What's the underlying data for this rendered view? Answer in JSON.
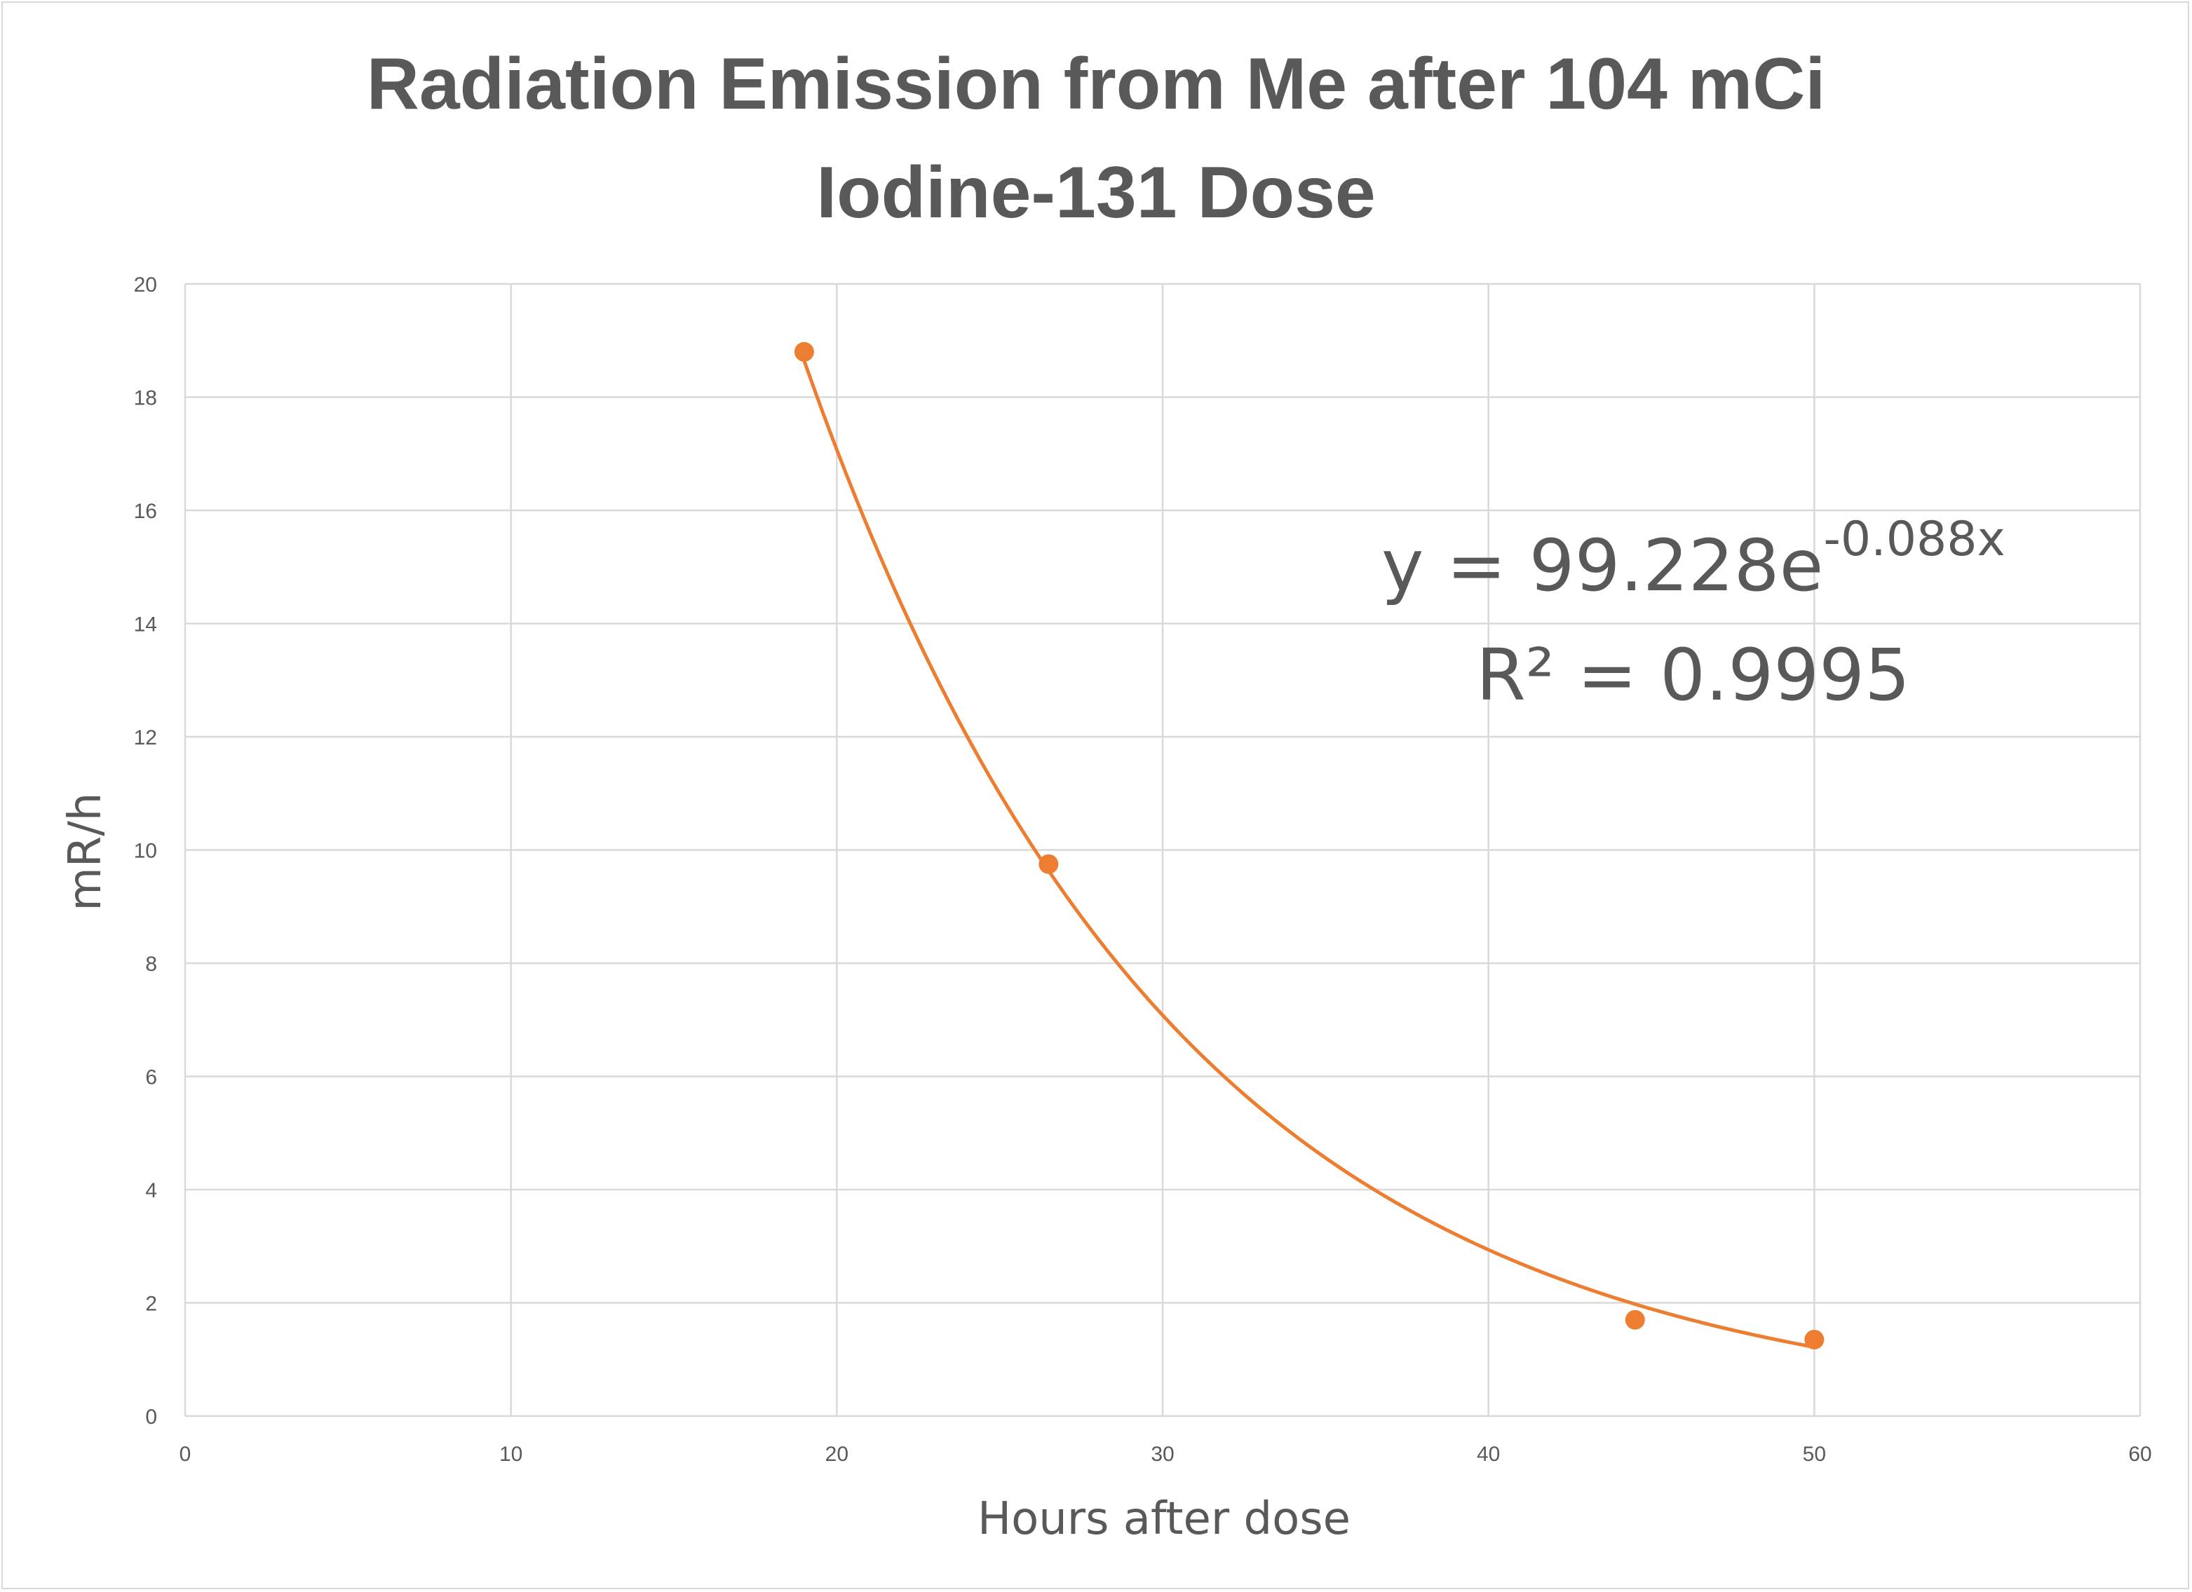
{
  "colors": {
    "series": "#ed7d31",
    "text": "#595959",
    "grid": "#d9d9d9",
    "background": "#ffffff"
  },
  "chart_data": {
    "type": "scatter",
    "title_lines": [
      "Radiation Emission from Me after 104 mCi",
      "Iodine-131 Dose"
    ],
    "xlabel": "Hours after dose",
    "ylabel": "mR/h",
    "xlim": [
      0,
      60
    ],
    "ylim": [
      0,
      20
    ],
    "x_ticks": [
      0,
      10,
      20,
      30,
      40,
      50,
      60
    ],
    "y_ticks": [
      0,
      2,
      4,
      6,
      8,
      10,
      12,
      14,
      16,
      18,
      20
    ],
    "grid": true,
    "legend": "none",
    "series": [
      {
        "x": [
          19,
          26.5,
          44.5,
          50
        ],
        "y": [
          18.8,
          9.75,
          1.7,
          1.35
        ]
      }
    ],
    "trendline": {
      "type": "exponential",
      "a": 99.228,
      "b": -0.088,
      "x_range": [
        19,
        50
      ],
      "equation_base": "y = 99.228e",
      "equation_exponent": "-0.088x",
      "r2_base": "R",
      "r2_exponent": "²",
      "r2_value": " = 0.9995"
    }
  }
}
